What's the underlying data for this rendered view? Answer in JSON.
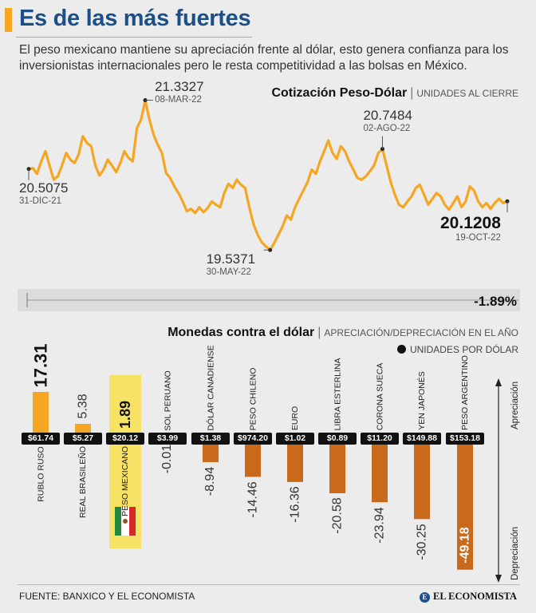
{
  "header": {
    "title": "Es de las más fuertes",
    "subtitle": "El peso mexicano mantiene su apreciación frente al dólar, esto genera confianza para los inversionistas internacionales pero le resta competitividad a las bolsas en México."
  },
  "colors": {
    "accent": "#f5a623",
    "title": "#1b4f8a",
    "positive_bar": "#f5a623",
    "negative_bar": "#c8691c",
    "highlight": "#f7e266"
  },
  "chart_data": [
    {
      "type": "line",
      "title": "Cotización Peso-Dólar",
      "unit_label": "UNIDADES AL CIERRE",
      "x_start": "31-DIC-21",
      "x_end": "19-OCT-22",
      "ylim": [
        19.3,
        21.5
      ],
      "values": [
        20.5075,
        20.52,
        20.45,
        20.6,
        20.72,
        20.55,
        20.38,
        20.42,
        20.55,
        20.7,
        20.62,
        20.58,
        20.68,
        20.9,
        20.82,
        20.78,
        20.55,
        20.43,
        20.5,
        20.62,
        20.55,
        20.47,
        20.58,
        20.72,
        20.64,
        20.6,
        21.0,
        21.1,
        21.3327,
        21.1,
        20.92,
        20.8,
        20.7,
        20.46,
        20.4,
        20.3,
        20.22,
        20.12,
        20.0,
        20.03,
        19.98,
        20.05,
        19.99,
        20.04,
        20.12,
        20.08,
        20.05,
        20.22,
        20.33,
        20.28,
        20.38,
        20.32,
        20.28,
        20.05,
        19.85,
        19.72,
        19.63,
        19.58,
        19.5371,
        19.62,
        19.72,
        19.82,
        19.95,
        19.9,
        20.05,
        20.15,
        20.25,
        20.35,
        20.5,
        20.45,
        20.6,
        20.72,
        20.85,
        20.7,
        20.63,
        20.78,
        20.72,
        20.6,
        20.5,
        20.4,
        20.38,
        20.42,
        20.48,
        20.55,
        20.7,
        20.7484,
        20.55,
        20.35,
        20.2,
        20.08,
        20.05,
        20.12,
        20.18,
        20.28,
        20.32,
        20.2,
        20.08,
        20.15,
        20.22,
        20.18,
        20.08,
        20.02,
        20.1,
        20.18,
        20.05,
        20.12,
        20.3,
        20.25,
        20.12,
        20.05,
        20.1,
        20.03,
        20.1,
        20.15,
        20.1,
        20.1208
      ],
      "annotations": [
        {
          "label": "20.5075",
          "date": "31-DIC-21",
          "index": 0
        },
        {
          "label": "21.3327",
          "date": "08-MAR-22",
          "index": 28
        },
        {
          "label": "19.5371",
          "date": "30-MAY-22",
          "index": 58
        },
        {
          "label": "20.7484",
          "date": "02-AGO-22",
          "index": 85
        },
        {
          "label": "20.1208",
          "date": "19-OCT-22",
          "index": 115
        }
      ],
      "ytd_change": "-1.89%"
    },
    {
      "type": "bar",
      "title": "Monedas contra el dólar",
      "unit_label": "APRECIACIÓN/DEPRECIACIÓN EN EL AÑO",
      "legend": "UNIDADES POR DÓLAR",
      "axis_up": "Apreciación",
      "axis_down": "Depreciación",
      "categories": [
        "RUBLO RUSO",
        "REAL BRASILEÑO",
        "PESO MEXICANO",
        "SOL PERUANO",
        "DÓLAR CANADIENSE",
        "PESO CHILENO",
        "EURO",
        "LIBRA ESTERLINA",
        "CORONA SUECA",
        "YEN JAPONÉS",
        "PESO ARGENTINO"
      ],
      "values": [
        17.31,
        5.38,
        1.89,
        -0.01,
        -8.94,
        -14.46,
        -16.36,
        -20.58,
        -23.94,
        -30.25,
        -49.18
      ],
      "value_labels": [
        "17.31",
        "5.38",
        "1.89",
        "-0.01",
        "-8.94",
        "-14.46",
        "-16.36",
        "-20.58",
        "-23.94",
        "-30.25",
        "-49.18"
      ],
      "units_per_dollar": [
        "$61.74",
        "$5.27",
        "$20.12",
        "$3.99",
        "$1.38",
        "$974.20",
        "$1.02",
        "$0.89",
        "$11.20",
        "$149.88",
        "$153.18"
      ],
      "highlight": "PESO MEXICANO"
    }
  ],
  "footer": {
    "source": "FUENTE: BANXICO Y EL ECONOMISTA",
    "brand": "EL ECONOMISTA",
    "brand_mark": "E"
  }
}
